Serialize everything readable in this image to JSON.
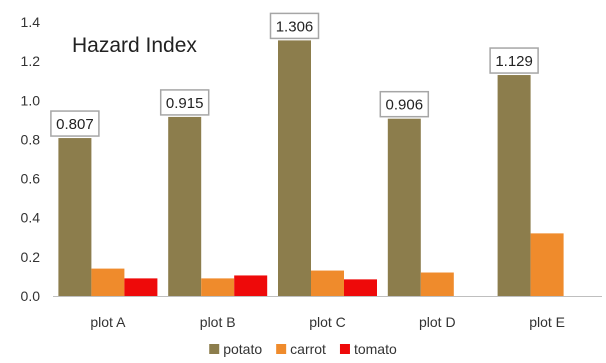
{
  "chart_data": {
    "type": "bar",
    "title": "Hazard Index",
    "xlabel": "",
    "ylabel": "",
    "categories": [
      "plot A",
      "plot B",
      "plot C",
      "plot D",
      "plot E"
    ],
    "series": [
      {
        "name": "potato",
        "values": [
          0.807,
          0.915,
          1.306,
          0.906,
          1.129
        ]
      },
      {
        "name": "carrot",
        "values": [
          0.14,
          0.09,
          0.13,
          0.12,
          0.32
        ]
      },
      {
        "name": "tomato",
        "values": [
          0.09,
          0.105,
          0.085,
          null,
          null
        ]
      }
    ],
    "data_labels": {
      "series": "potato",
      "values": [
        "0.807",
        "0.915",
        "1.306",
        "0.906",
        "1.129"
      ]
    },
    "ylim": [
      0,
      1.4
    ],
    "yticks": [
      "0.0",
      "0.2",
      "0.4",
      "0.6",
      "0.8",
      "1.0",
      "1.2",
      "1.4"
    ],
    "grid": false,
    "legend_position": "bottom",
    "colors": {
      "potato": "#8c7d4c",
      "carrot": "#ef8b2c",
      "tomato": "#ee0a0a",
      "label_border": "#a6a6a6",
      "axis": "#bfbfbf"
    }
  }
}
